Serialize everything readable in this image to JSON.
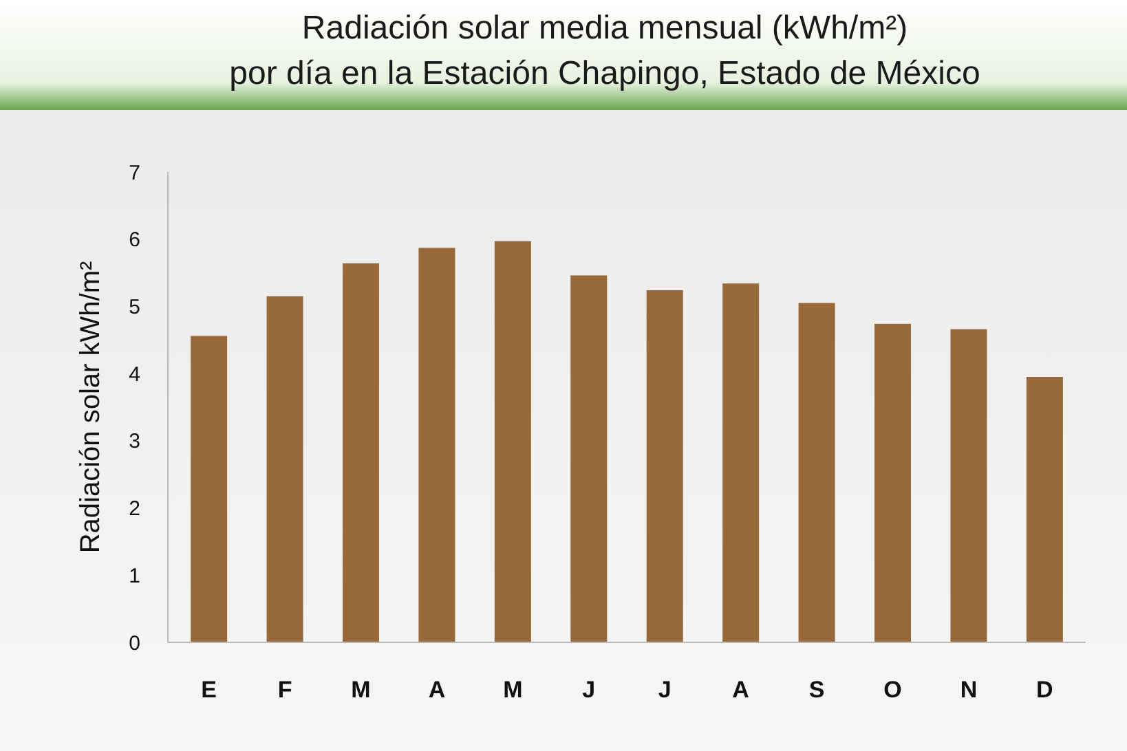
{
  "chart_data": {
    "type": "bar",
    "title": "Radiación solar media mensual (kWh/m²)\npor día en la Estación Chapingo, Estado de México",
    "ylabel": "Radiación solar kWh/m²",
    "categories": [
      "E",
      "F",
      "M",
      "A",
      "M",
      "J",
      "J",
      "A",
      "S",
      "O",
      "N",
      "D"
    ],
    "values": [
      4.56,
      5.15,
      5.64,
      5.87,
      5.97,
      5.46,
      5.24,
      5.34,
      5.05,
      4.74,
      4.66,
      3.95
    ],
    "color": "#98693a",
    "ylim": [
      0,
      7
    ],
    "yticks": [
      0,
      1,
      2,
      3,
      4,
      5,
      6,
      7
    ],
    "grid": false
  }
}
